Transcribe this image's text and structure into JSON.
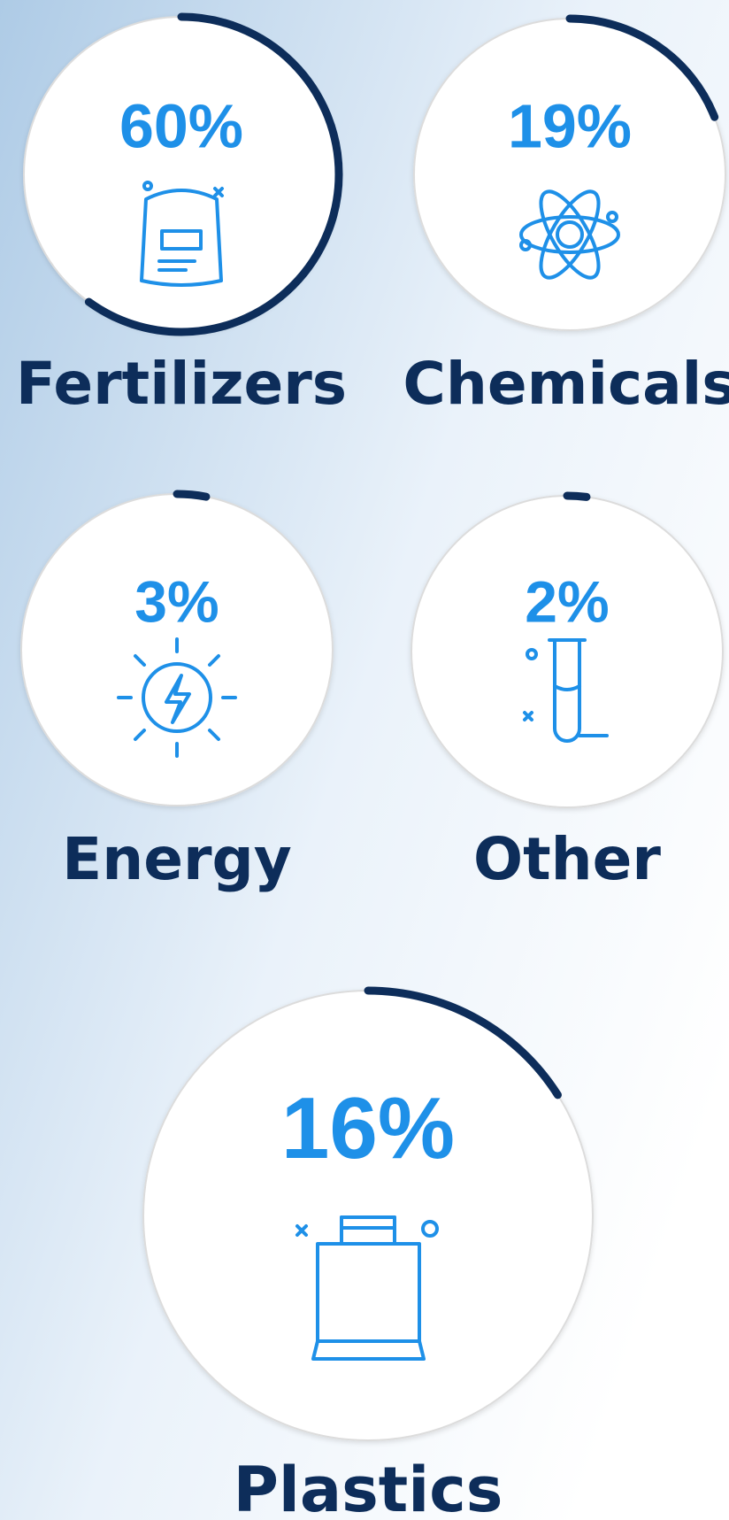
{
  "chart_data": {
    "type": "ring",
    "categories": [
      "Fertilizers",
      "Chemicals",
      "Energy",
      "Other",
      "Plastics"
    ],
    "values": [
      60,
      19,
      3,
      2,
      16
    ],
    "value_labels": [
      "60%",
      "19%",
      "3%",
      "2%",
      "16%"
    ],
    "max": 100,
    "color": "#0d2d5a"
  }
}
